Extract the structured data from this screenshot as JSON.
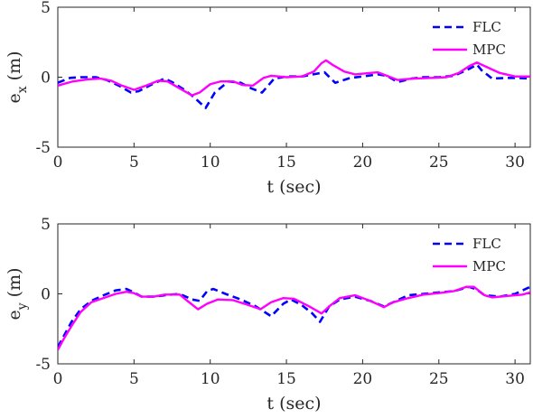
{
  "chart_data": [
    {
      "type": "line",
      "title": "",
      "xlabel": "t (sec)",
      "ylabel_main": "e",
      "ylabel_sub": "x",
      "ylabel_unit": "(m)",
      "xlim": [
        0,
        31
      ],
      "ylim": [
        -5,
        5
      ],
      "xticks": [
        0,
        5,
        10,
        15,
        20,
        25,
        30
      ],
      "yticks": [
        -5,
        0,
        5
      ],
      "legend_position": "top-right",
      "grid": false,
      "series": [
        {
          "name": "FLC",
          "color": "#0000ff",
          "style": "dashed",
          "points": [
            [
              0,
              -0.4
            ],
            [
              0.8,
              -0.05
            ],
            [
              1.5,
              0
            ],
            [
              2.5,
              0
            ],
            [
              3.2,
              -0.2
            ],
            [
              4,
              -0.6
            ],
            [
              4.8,
              -1.1
            ],
            [
              5.3,
              -1.0
            ],
            [
              6.2,
              -0.5
            ],
            [
              7,
              -0.1
            ],
            [
              7.5,
              -0.35
            ],
            [
              8.3,
              -0.9
            ],
            [
              8.9,
              -1.4
            ],
            [
              9.7,
              -2.2
            ],
            [
              10.3,
              -1.1
            ],
            [
              11.2,
              -0.3
            ],
            [
              12,
              -0.4
            ],
            [
              12.7,
              -0.8
            ],
            [
              13.4,
              -1.1
            ],
            [
              14.2,
              -0.1
            ],
            [
              15,
              0.05
            ],
            [
              16,
              0.05
            ],
            [
              17,
              0.25
            ],
            [
              17.5,
              0.35
            ],
            [
              18.2,
              -0.4
            ],
            [
              19.2,
              -0.05
            ],
            [
              20,
              0.05
            ],
            [
              21,
              0.2
            ],
            [
              21.6,
              0.1
            ],
            [
              22.3,
              -0.35
            ],
            [
              23.2,
              -0.1
            ],
            [
              24,
              0
            ],
            [
              25,
              0
            ],
            [
              26,
              0.1
            ],
            [
              27,
              0.6
            ],
            [
              27.5,
              0.9
            ],
            [
              27.8,
              0.5
            ],
            [
              28.5,
              -0.1
            ],
            [
              29.5,
              -0.05
            ],
            [
              30,
              -0.05
            ],
            [
              31,
              -0.1
            ]
          ]
        },
        {
          "name": "MPC",
          "color": "#ff00ff",
          "style": "solid",
          "points": [
            [
              0,
              -0.6
            ],
            [
              1,
              -0.3
            ],
            [
              2,
              -0.15
            ],
            [
              2.8,
              -0.1
            ],
            [
              3.5,
              -0.25
            ],
            [
              4.2,
              -0.6
            ],
            [
              5,
              -0.9
            ],
            [
              5.8,
              -0.6
            ],
            [
              6.6,
              -0.25
            ],
            [
              7.2,
              -0.3
            ],
            [
              8,
              -0.8
            ],
            [
              8.8,
              -1.3
            ],
            [
              9.3,
              -1.1
            ],
            [
              10,
              -0.5
            ],
            [
              10.7,
              -0.3
            ],
            [
              11.5,
              -0.3
            ],
            [
              12.1,
              -0.55
            ],
            [
              12.8,
              -0.6
            ],
            [
              13.5,
              -0.05
            ],
            [
              14,
              0.1
            ],
            [
              15,
              0.0
            ],
            [
              16,
              0.05
            ],
            [
              16.8,
              0.4
            ],
            [
              17.3,
              1.0
            ],
            [
              17.6,
              1.2
            ],
            [
              18,
              0.9
            ],
            [
              18.8,
              0.4
            ],
            [
              19.5,
              0.2
            ],
            [
              20.5,
              0.3
            ],
            [
              21,
              0.35
            ],
            [
              21.6,
              0.1
            ],
            [
              22.3,
              -0.2
            ],
            [
              23.3,
              -0.1
            ],
            [
              24.5,
              -0.05
            ],
            [
              25.5,
              0
            ],
            [
              26.3,
              0.3
            ],
            [
              27,
              0.8
            ],
            [
              27.5,
              1.05
            ],
            [
              28,
              0.8
            ],
            [
              29,
              0.3
            ],
            [
              30,
              0.05
            ],
            [
              31,
              0.05
            ]
          ]
        }
      ]
    },
    {
      "type": "line",
      "title": "",
      "xlabel": "t (sec)",
      "ylabel_main": "e",
      "ylabel_sub": "y",
      "ylabel_unit": "(m)",
      "xlim": [
        0,
        31
      ],
      "ylim": [
        -5,
        5
      ],
      "xticks": [
        0,
        5,
        10,
        15,
        20,
        25,
        30
      ],
      "yticks": [
        -5,
        0,
        5
      ],
      "legend_position": "top-right",
      "grid": false,
      "series": [
        {
          "name": "FLC",
          "color": "#0000ff",
          "style": "dashed",
          "points": [
            [
              0,
              -3.8
            ],
            [
              0.4,
              -3.0
            ],
            [
              0.9,
              -2.0
            ],
            [
              1.5,
              -1.1
            ],
            [
              2.2,
              -0.5
            ],
            [
              3,
              -0.1
            ],
            [
              3.8,
              0.25
            ],
            [
              4.5,
              0.35
            ],
            [
              5,
              0.1
            ],
            [
              5.5,
              -0.2
            ],
            [
              6.3,
              -0.2
            ],
            [
              7,
              -0.1
            ],
            [
              8,
              0.0
            ],
            [
              8.8,
              -0.4
            ],
            [
              9.3,
              -0.5
            ],
            [
              9.8,
              0.2
            ],
            [
              10.2,
              0.35
            ],
            [
              11,
              0.0
            ],
            [
              12,
              -0.4
            ],
            [
              13,
              -0.9
            ],
            [
              14,
              -1.6
            ],
            [
              14.8,
              -0.7
            ],
            [
              15.3,
              -0.4
            ],
            [
              16,
              -0.8
            ],
            [
              16.7,
              -1.4
            ],
            [
              17.2,
              -2.0
            ],
            [
              17.8,
              -0.9
            ],
            [
              18.5,
              -0.4
            ],
            [
              19.5,
              -0.2
            ],
            [
              20.5,
              -0.5
            ],
            [
              21.4,
              -0.9
            ],
            [
              22,
              -0.6
            ],
            [
              23,
              -0.1
            ],
            [
              24,
              0.0
            ],
            [
              25,
              0.1
            ],
            [
              26,
              0.2
            ],
            [
              27,
              0.5
            ],
            [
              27.5,
              0.3
            ],
            [
              28,
              -0.1
            ],
            [
              29,
              -0.2
            ],
            [
              30,
              0.0
            ],
            [
              31,
              0.5
            ]
          ]
        },
        {
          "name": "MPC",
          "color": "#ff00ff",
          "style": "solid",
          "points": [
            [
              0,
              -4.0
            ],
            [
              0.4,
              -3.2
            ],
            [
              0.9,
              -2.3
            ],
            [
              1.5,
              -1.3
            ],
            [
              2.2,
              -0.6
            ],
            [
              3,
              -0.3
            ],
            [
              3.8,
              0.0
            ],
            [
              4.5,
              0.15
            ],
            [
              5,
              0.05
            ],
            [
              5.5,
              -0.2
            ],
            [
              6.3,
              -0.2
            ],
            [
              7,
              -0.05
            ],
            [
              8,
              -0.05
            ],
            [
              8.5,
              -0.5
            ],
            [
              9.2,
              -1.1
            ],
            [
              9.8,
              -0.7
            ],
            [
              10.5,
              -0.4
            ],
            [
              11.5,
              -0.45
            ],
            [
              12.5,
              -0.8
            ],
            [
              13.3,
              -1.1
            ],
            [
              14,
              -0.6
            ],
            [
              14.8,
              -0.3
            ],
            [
              15.5,
              -0.35
            ],
            [
              16.5,
              -0.9
            ],
            [
              17.3,
              -1.4
            ],
            [
              17.8,
              -0.9
            ],
            [
              18.5,
              -0.3
            ],
            [
              19.5,
              -0.1
            ],
            [
              20.5,
              -0.5
            ],
            [
              21.4,
              -0.95
            ],
            [
              22,
              -0.6
            ],
            [
              23,
              -0.3
            ],
            [
              24,
              -0.05
            ],
            [
              25,
              0.05
            ],
            [
              26,
              0.2
            ],
            [
              26.8,
              0.5
            ],
            [
              27.3,
              0.5
            ],
            [
              28,
              -0.1
            ],
            [
              28.5,
              -0.25
            ],
            [
              29.5,
              -0.15
            ],
            [
              30.5,
              -0.05
            ],
            [
              31,
              0.1
            ]
          ]
        }
      ]
    }
  ]
}
